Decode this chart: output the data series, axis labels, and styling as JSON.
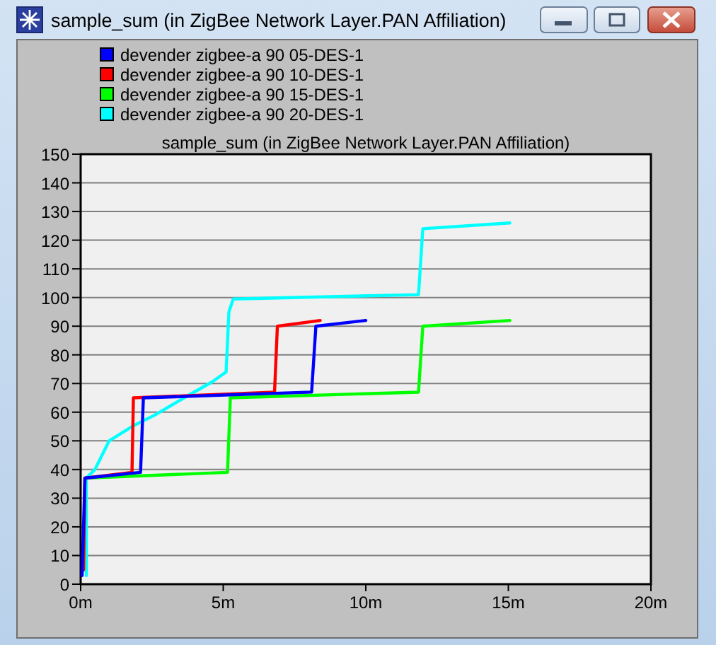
{
  "chart_data": {
    "type": "line",
    "title": "sample_sum (in ZigBee Network Layer.PAN Affiliation)",
    "annotations": [
      "sample_sum (in ZigBee Network Layer.PAN Affiliation)"
    ],
    "xlim": [
      0,
      20
    ],
    "xticks": [
      {
        "value": 0,
        "label": "0m"
      },
      {
        "value": 5,
        "label": "5m"
      },
      {
        "value": 10,
        "label": "10m"
      },
      {
        "value": 15,
        "label": "15m"
      },
      {
        "value": 20,
        "label": "20m"
      }
    ],
    "ylim": [
      0,
      150
    ],
    "yticks": [
      0,
      10,
      20,
      30,
      40,
      50,
      60,
      70,
      80,
      90,
      100,
      110,
      120,
      130,
      140,
      150
    ],
    "grid": "y",
    "legend": "top left",
    "line_style": "solid",
    "series": [
      {
        "name": "devender zigbee-a 90 05-DES-1",
        "color": "#0000ff",
        "x": [
          0.05,
          0.1,
          0.15,
          2.1,
          2.2,
          8.1,
          8.25,
          10.0
        ],
        "values": [
          3,
          20,
          37,
          39,
          65,
          67,
          90,
          92
        ]
      },
      {
        "name": "devender zigbee-a 90 10-DES-1",
        "color": "#ff0000",
        "x": [
          0.1,
          0.15,
          1.8,
          1.85,
          6.8,
          6.9,
          8.4
        ],
        "values": [
          5,
          37,
          39,
          65,
          67,
          90,
          92
        ]
      },
      {
        "name": "devender zigbee-a 90 15-DES-1",
        "color": "#00ff00",
        "x": [
          0.1,
          0.15,
          5.15,
          5.25,
          11.85,
          12.0,
          15.05
        ],
        "values": [
          5,
          37,
          39,
          65,
          67,
          90,
          92
        ]
      },
      {
        "name": "devender zigbee-a 90 20-DES-1",
        "color": "#00ffff",
        "x": [
          0.2,
          0.2,
          0.5,
          1.0,
          1.8,
          2.6,
          3.8,
          4.6,
          5.1,
          5.2,
          5.35,
          11.85,
          12.0,
          15.05
        ],
        "values": [
          3,
          37,
          40,
          50,
          55,
          59,
          66,
          70.5,
          74,
          95,
          99.5,
          101,
          124,
          126
        ]
      }
    ]
  }
}
